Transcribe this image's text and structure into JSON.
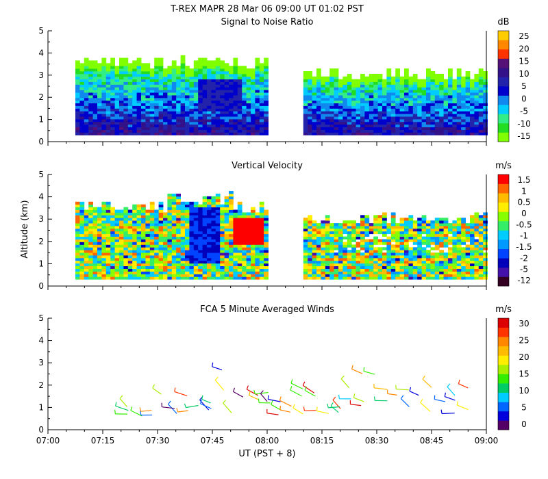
{
  "header": {
    "title": "T-REX   MAPR 28 Mar 06   09:00 UT   01:02   PST"
  },
  "colors": {
    "snr_scale": [
      "#7fff00",
      "#22dd22",
      "#33ee88",
      "#00ccff",
      "#1188ee",
      "#0000cc",
      "#2222aa",
      "#331188",
      "#551177",
      "#ff3300",
      "#ff8800",
      "#ffcc00"
    ],
    "vel_scale": [
      "#330022",
      "#4411aa",
      "#0000bb",
      "#0044ff",
      "#0099ff",
      "#00ccff",
      "#33ee66",
      "#88ff00",
      "#ffee00",
      "#ffbb00",
      "#ff6600",
      "#ff0000"
    ],
    "wind_scale": [
      "#550066",
      "#0000dd",
      "#0066ff",
      "#00ccff",
      "#00cc66",
      "#33ee00",
      "#aaee00",
      "#ffee00",
      "#ffbb00",
      "#ff8800",
      "#ff3300",
      "#dd0000"
    ]
  },
  "chart_data": [
    {
      "type": "heatmap",
      "title": "Signal to Noise Ratio",
      "x_ticks": [
        "07:00",
        "07:15",
        "07:30",
        "07:45",
        "08:00",
        "08:15",
        "08:30",
        "08:45",
        "09:00"
      ],
      "y_ticks": [
        "0",
        "1",
        "2",
        "3",
        "4",
        "5"
      ],
      "ylim": [
        0,
        5
      ],
      "colorbar": {
        "unit": "dB",
        "labels": [
          "25",
          "20",
          "15",
          "10",
          "5",
          "0",
          "-5",
          "-10",
          "-15"
        ],
        "range": [
          -15,
          25
        ]
      },
      "gap": [
        "08:00",
        "08:09"
      ]
    },
    {
      "type": "heatmap",
      "title": "Vertical Velocity",
      "ylabel": "Altitude (km)",
      "x_ticks": [
        "07:00",
        "07:15",
        "07:30",
        "07:45",
        "08:00",
        "08:15",
        "08:30",
        "08:45",
        "09:00"
      ],
      "y_ticks": [
        "0",
        "1",
        "2",
        "3",
        "4",
        "5"
      ],
      "ylim": [
        0,
        5
      ],
      "colorbar": {
        "unit": "m/s",
        "labels": [
          "1.5",
          "1",
          "0.5",
          "0",
          "-0.5",
          "-1",
          "-1.5",
          "-2",
          "-5",
          "-12"
        ]
      },
      "gap": [
        "08:00",
        "08:09"
      ]
    },
    {
      "type": "scatter",
      "title": "FCA 5 Minute Averaged Winds",
      "xlabel": "UT  (PST + 8)",
      "x_ticks": [
        "07:00",
        "07:15",
        "07:30",
        "07:45",
        "08:00",
        "08:15",
        "08:30",
        "08:45",
        "09:00"
      ],
      "y_ticks": [
        "0",
        "1",
        "2",
        "3",
        "4",
        "5"
      ],
      "ylim": [
        0,
        5
      ],
      "colorbar": {
        "unit": "m/s",
        "labels": [
          "30",
          "25",
          "20",
          "15",
          "10",
          "5",
          "0"
        ],
        "range": [
          0,
          30
        ]
      }
    }
  ]
}
